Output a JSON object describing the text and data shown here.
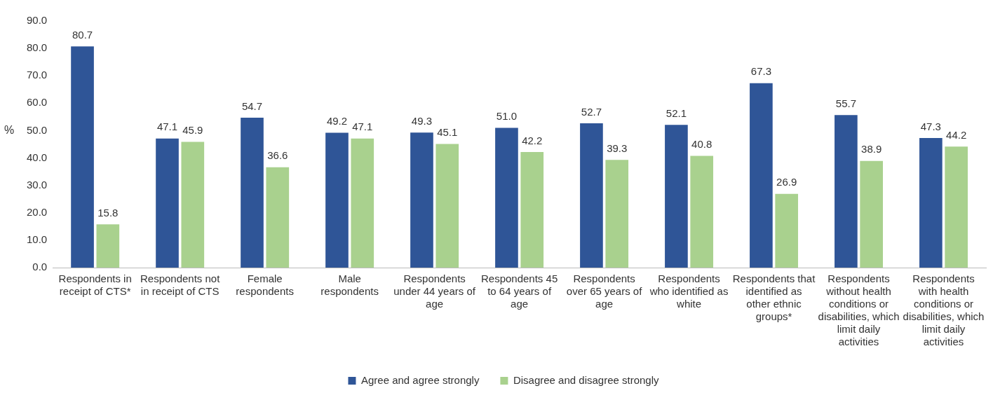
{
  "chart_data": {
    "type": "bar",
    "ylabel": "%",
    "categories": [
      "Respondents in receipt of CTS*",
      "Respondents not in receipt of CTS",
      "Female respondents",
      "Male respondents",
      "Respondents under 44 years of age",
      "Respondents 45 to 64 years of age",
      "Respondents over 65 years of age",
      "Respondents who identified as white",
      "Respondents that identified as other ethnic groups*",
      "Respondents without health conditions or disabilities, which limit daily activities",
      "Respondents with health conditions or disabilities, which limit daily activities"
    ],
    "series": [
      {
        "name": "Agree and agree strongly",
        "color": "#2f5597",
        "values": [
          80.7,
          47.1,
          54.7,
          49.2,
          49.3,
          51.0,
          52.7,
          52.1,
          67.3,
          55.7,
          47.3
        ],
        "value_labels": [
          "80.7",
          "47.1",
          "54.7",
          "49.2",
          "49.3",
          "51.0",
          "52.7",
          "52.1",
          "67.3",
          "55.7",
          "47.3"
        ]
      },
      {
        "name": "Disagree and disagree strongly",
        "color": "#a9d18e",
        "values": [
          15.8,
          45.9,
          36.6,
          47.1,
          45.1,
          42.2,
          39.3,
          40.8,
          26.9,
          38.9,
          44.2
        ],
        "value_labels": [
          "15.8",
          "45.9",
          "36.6",
          "47.1",
          "45.1",
          "42.2",
          "39.3",
          "40.8",
          "26.9",
          "38.9",
          "44.2"
        ]
      }
    ],
    "ylim": [
      0,
      90
    ],
    "yticks": [
      {
        "value": 0,
        "label": "0.0"
      },
      {
        "value": 10,
        "label": "10.0"
      },
      {
        "value": 20,
        "label": "20.0"
      },
      {
        "value": 30,
        "label": "30.0"
      },
      {
        "value": 40,
        "label": "40.0"
      },
      {
        "value": 50,
        "label": "50.0"
      },
      {
        "value": 60,
        "label": "60.0"
      },
      {
        "value": 70,
        "label": "70.0"
      },
      {
        "value": 80,
        "label": "80.0"
      },
      {
        "value": 90,
        "label": "90.0"
      }
    ],
    "grid": false,
    "legend": "bottom"
  }
}
